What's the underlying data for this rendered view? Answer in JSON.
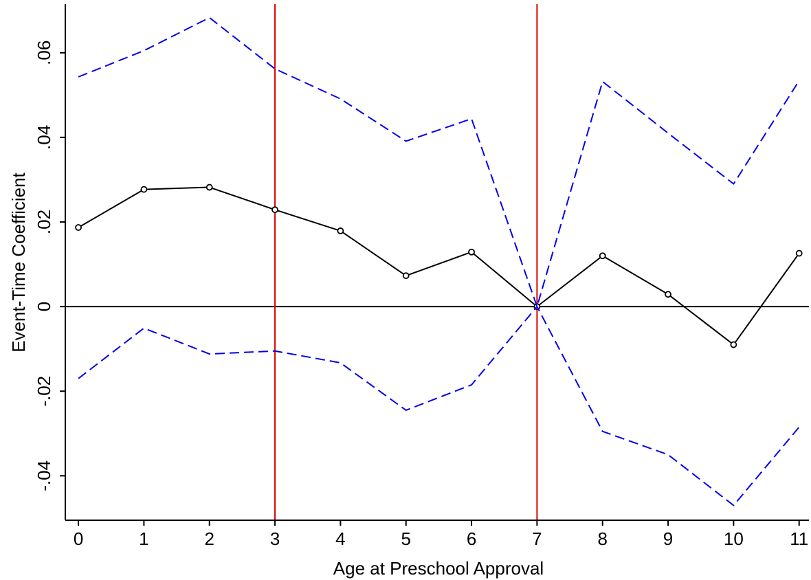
{
  "chart_data": {
    "type": "line",
    "title": "",
    "xlabel": "Age at Preschool Approval",
    "ylabel": "Event-Time Coefficient",
    "x": [
      0,
      1,
      2,
      3,
      4,
      5,
      6,
      7,
      8,
      9,
      10,
      11
    ],
    "xlim": [
      -0.2,
      11.15
    ],
    "ylim": [
      -0.0505,
      0.0715
    ],
    "x_ticks": [
      0,
      1,
      2,
      3,
      4,
      5,
      6,
      7,
      8,
      9,
      10,
      11
    ],
    "x_tick_labels": [
      "0",
      "1",
      "2",
      "3",
      "4",
      "5",
      "6",
      "7",
      "8",
      "9",
      "10",
      "11"
    ],
    "y_ticks": [
      -0.04,
      -0.02,
      0,
      0.02,
      0.04,
      0.06
    ],
    "y_tick_labels": [
      "-.04",
      "-.02",
      "0",
      ".02",
      ".04",
      ".06"
    ],
    "grid": false,
    "legend": "none",
    "reference_lines": {
      "horizontal": [
        0
      ],
      "vertical": [
        3,
        7
      ],
      "horizontal_color": "#000000",
      "vertical_color": "#dd0000"
    },
    "series": [
      {
        "role": "estimate",
        "values": [
          0.0187,
          0.0277,
          0.0282,
          0.0229,
          0.0179,
          0.0073,
          0.0129,
          0.0,
          0.012,
          0.0029,
          -0.009,
          0.0126
        ],
        "color": "#000000",
        "style": "solid",
        "markers": "hollow-circle"
      },
      {
        "role": "upper-ci",
        "values": [
          0.0543,
          0.0605,
          0.0683,
          0.0562,
          0.0491,
          0.0391,
          0.0444,
          0.0,
          0.0532,
          0.041,
          0.029,
          0.0534
        ],
        "color": "#0000ee",
        "style": "dashed"
      },
      {
        "role": "lower-ci",
        "values": [
          -0.017,
          -0.0051,
          -0.0112,
          -0.0105,
          -0.0133,
          -0.0245,
          -0.0185,
          0.0,
          -0.0295,
          -0.035,
          -0.047,
          -0.0285
        ],
        "color": "#0000ee",
        "style": "dashed"
      }
    ]
  }
}
